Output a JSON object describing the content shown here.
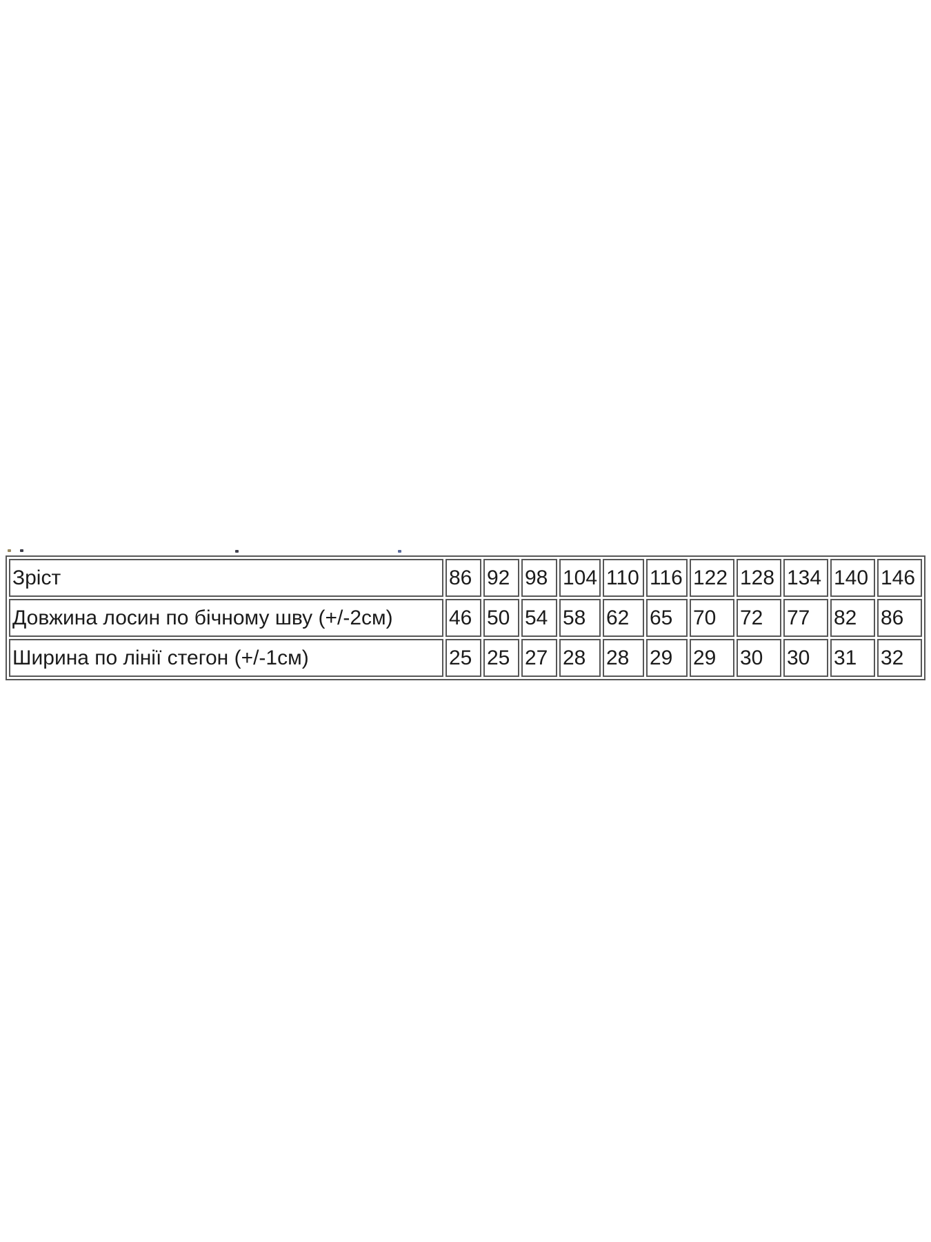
{
  "page": {
    "background": "#ffffff"
  },
  "size_table": {
    "border_color": "#565656",
    "text_color": "#1b1b1b",
    "rows": [
      {
        "label": "Зріст",
        "values": [
          "86",
          "92",
          "98",
          "104",
          "110",
          "116",
          "122",
          "128",
          "134",
          "140",
          "146"
        ]
      },
      {
        "label": "Довжина лосин по бічному шву (+/-2см)",
        "values": [
          "46",
          "50",
          "54",
          "58",
          "62",
          "65",
          "70",
          "72",
          "77",
          "82",
          "86"
        ]
      },
      {
        "label": "Ширина по лінії стегон (+/-1см)",
        "values": [
          "25",
          "25",
          "27",
          "28",
          "28",
          "29",
          "29",
          "30",
          "30",
          "31",
          "32"
        ]
      }
    ]
  }
}
